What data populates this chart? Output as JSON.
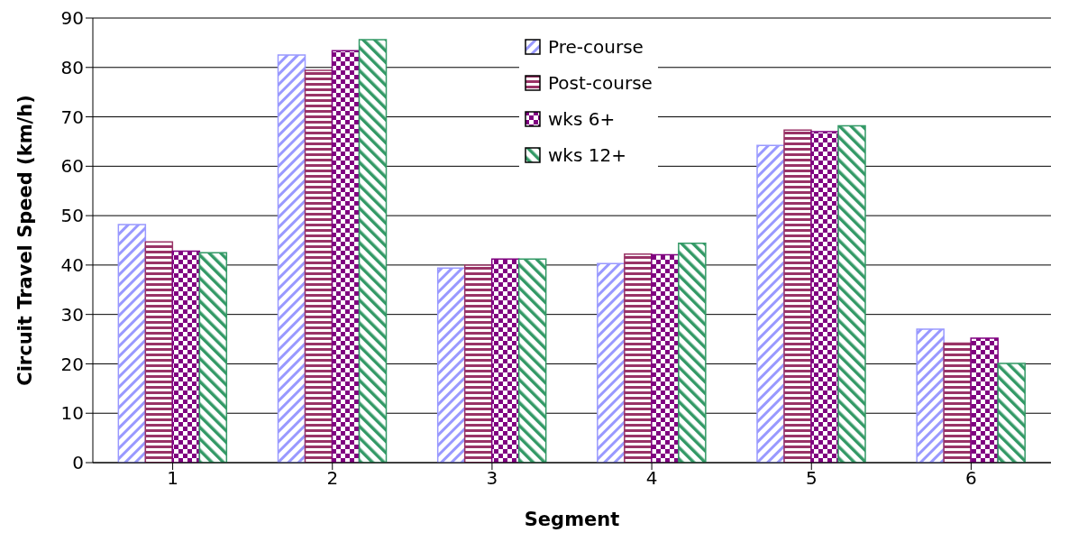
{
  "chart_data": {
    "type": "bar",
    "xlabel": "Segment",
    "ylabel": "Circuit Travel Speed (km/h)",
    "categories": [
      "1",
      "2",
      "3",
      "4",
      "5",
      "6"
    ],
    "series": [
      {
        "name": "Pre-course",
        "color": "#9999ff",
        "values": [
          48.2,
          82.5,
          39.4,
          40.3,
          64.2,
          27.0
        ]
      },
      {
        "name": "Post-course",
        "color": "#993366",
        "values": [
          44.7,
          79.4,
          40.0,
          42.2,
          67.3,
          24.2
        ]
      },
      {
        "name": "wks 6+",
        "color": "#800080",
        "values": [
          42.8,
          83.4,
          41.2,
          42.1,
          67.0,
          25.2
        ]
      },
      {
        "name": "wks 12+",
        "color": "#339966",
        "values": [
          42.5,
          85.6,
          41.2,
          44.4,
          68.2,
          20.1
        ]
      }
    ],
    "ylim": [
      0,
      90
    ],
    "yticks": [
      0,
      10,
      20,
      30,
      40,
      50,
      60,
      70,
      80,
      90
    ],
    "grid": "y",
    "legend": "top"
  }
}
